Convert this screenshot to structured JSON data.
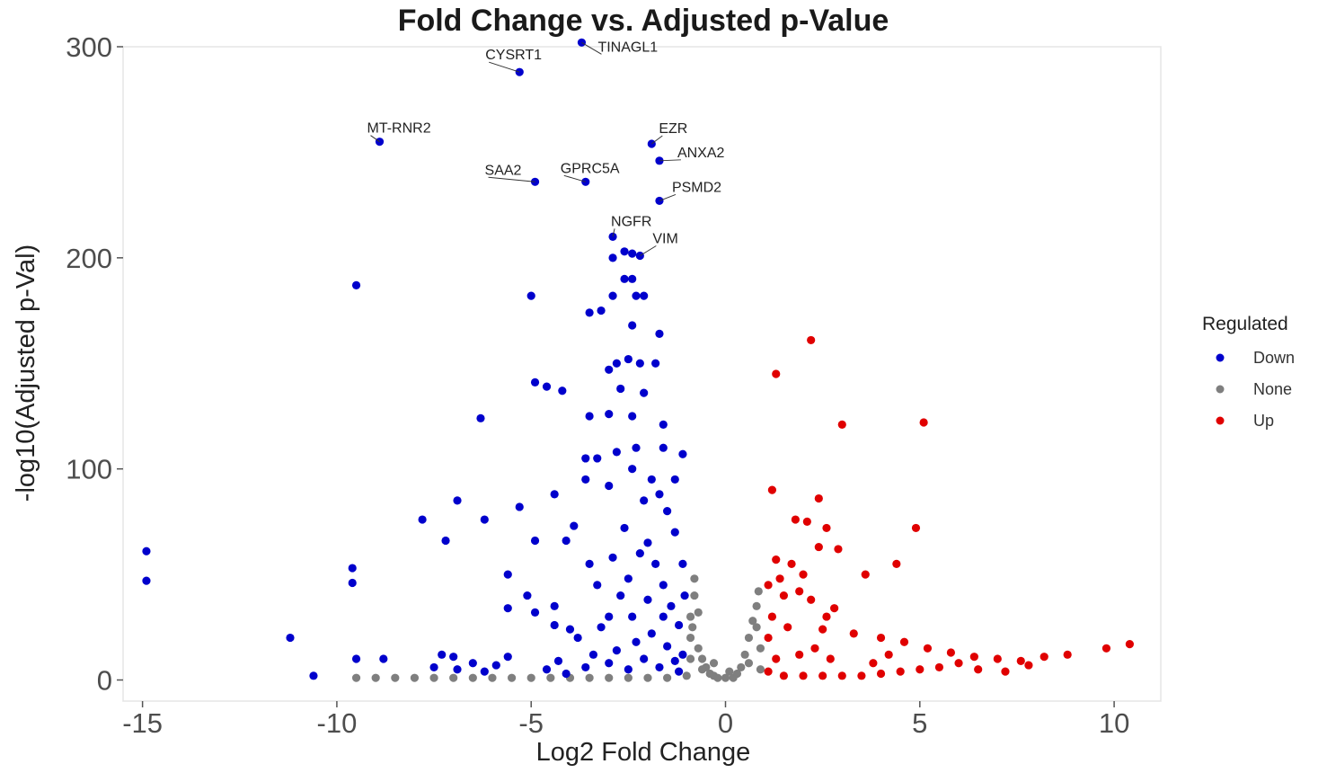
{
  "chart_data": {
    "type": "scatter",
    "title": "Fold Change vs. Adjusted p-Value",
    "xlabel": "Log2 Fold Change",
    "ylabel": "-log10(Adjusted p-Val)",
    "xlim": [
      -15.5,
      11.2
    ],
    "ylim": [
      -10,
      300
    ],
    "x_ticks": [
      -15,
      -10,
      -5,
      0,
      5,
      10
    ],
    "x_tick_labels": [
      "-15",
      "-10",
      "-5",
      "0",
      "5",
      "10"
    ],
    "y_ticks": [
      0,
      100,
      200,
      300
    ],
    "y_tick_labels": [
      "0",
      "100",
      "200",
      "300"
    ],
    "grid": false,
    "legend": {
      "title": "Regulated",
      "position": "right",
      "entries": [
        {
          "label": "Down",
          "color": "#0000cc"
        },
        {
          "label": "None",
          "color": "#7f7f7f"
        },
        {
          "label": "Up",
          "color": "#e00000"
        }
      ]
    },
    "labels": [
      {
        "text": "CYSRT1",
        "x": -5.3,
        "y": 288
      },
      {
        "text": "TINAGL1",
        "x": -3.7,
        "y": 302
      },
      {
        "text": "MT-RNR2",
        "x": -8.9,
        "y": 255
      },
      {
        "text": "EZR",
        "x": -1.9,
        "y": 254
      },
      {
        "text": "ANXA2",
        "x": -1.7,
        "y": 246
      },
      {
        "text": "SAA2",
        "x": -4.9,
        "y": 236
      },
      {
        "text": "GPRC5A",
        "x": -3.6,
        "y": 236
      },
      {
        "text": "PSMD2",
        "x": -1.7,
        "y": 227
      },
      {
        "text": "NGFR",
        "x": -2.9,
        "y": 210
      },
      {
        "text": "VIM",
        "x": -2.2,
        "y": 201
      }
    ],
    "series": [
      {
        "name": "Down",
        "color": "#0000cc",
        "points": [
          [
            -5.3,
            288
          ],
          [
            -3.7,
            302
          ],
          [
            -8.9,
            255
          ],
          [
            -1.9,
            254
          ],
          [
            -1.7,
            246
          ],
          [
            -4.9,
            236
          ],
          [
            -3.6,
            236
          ],
          [
            -1.7,
            227
          ],
          [
            -2.9,
            210
          ],
          [
            -2.2,
            201
          ],
          [
            -2.6,
            203
          ],
          [
            -2.4,
            202
          ],
          [
            -9.5,
            187
          ],
          [
            -5.0,
            182
          ],
          [
            -2.9,
            200
          ],
          [
            -2.6,
            190
          ],
          [
            -2.4,
            190
          ],
          [
            -2.9,
            182
          ],
          [
            -2.3,
            182
          ],
          [
            -2.1,
            182
          ],
          [
            -3.5,
            174
          ],
          [
            -3.2,
            175
          ],
          [
            -2.4,
            168
          ],
          [
            -1.7,
            164
          ],
          [
            -4.9,
            141
          ],
          [
            -4.6,
            139
          ],
          [
            -4.2,
            137
          ],
          [
            -3.0,
            147
          ],
          [
            -2.8,
            150
          ],
          [
            -2.5,
            152
          ],
          [
            -2.2,
            150
          ],
          [
            -1.8,
            150
          ],
          [
            -2.7,
            138
          ],
          [
            -2.1,
            136
          ],
          [
            -3.0,
            126
          ],
          [
            -3.5,
            125
          ],
          [
            -2.4,
            125
          ],
          [
            -1.6,
            121
          ],
          [
            -6.3,
            124
          ],
          [
            -2.8,
            108
          ],
          [
            -2.3,
            110
          ],
          [
            -1.6,
            110
          ],
          [
            -1.1,
            107
          ],
          [
            -3.6,
            105
          ],
          [
            -3.3,
            105
          ],
          [
            -2.4,
            100
          ],
          [
            -3.6,
            95
          ],
          [
            -3.0,
            92
          ],
          [
            -1.3,
            95
          ],
          [
            -4.4,
            88
          ],
          [
            -6.9,
            85
          ],
          [
            -5.3,
            82
          ],
          [
            -7.8,
            76
          ],
          [
            -6.2,
            76
          ],
          [
            -3.9,
            73
          ],
          [
            -7.2,
            66
          ],
          [
            -4.9,
            66
          ],
          [
            -4.1,
            66
          ],
          [
            -5.6,
            50
          ],
          [
            -9.6,
            53
          ],
          [
            -9.6,
            46
          ],
          [
            -5.6,
            34
          ],
          [
            -5.1,
            40
          ],
          [
            -4.9,
            32
          ],
          [
            -4.4,
            35
          ],
          [
            -4.4,
            26
          ],
          [
            -4.0,
            24
          ],
          [
            -3.8,
            20
          ],
          [
            -11.2,
            20
          ],
          [
            -9.5,
            10
          ],
          [
            -8.8,
            10
          ],
          [
            -10.6,
            2
          ],
          [
            -7.3,
            12
          ],
          [
            -7.0,
            11
          ],
          [
            -7.5,
            6
          ],
          [
            -6.9,
            5
          ],
          [
            -6.5,
            8
          ],
          [
            -6.2,
            4
          ],
          [
            -5.9,
            7
          ],
          [
            -5.6,
            11
          ],
          [
            -4.6,
            5
          ],
          [
            -4.3,
            9
          ],
          [
            -4.1,
            3
          ],
          [
            -3.6,
            6
          ],
          [
            -3.4,
            12
          ],
          [
            -3.0,
            8
          ],
          [
            -2.8,
            14
          ],
          [
            -2.5,
            5
          ],
          [
            -2.3,
            18
          ],
          [
            -2.1,
            10
          ],
          [
            -1.9,
            22
          ],
          [
            -1.7,
            6
          ],
          [
            -1.5,
            16
          ],
          [
            -1.3,
            9
          ],
          [
            -1.1,
            12
          ],
          [
            -1.2,
            26
          ],
          [
            -1.4,
            35
          ],
          [
            -1.6,
            45
          ],
          [
            -1.8,
            55
          ],
          [
            -2.0,
            65
          ],
          [
            -2.2,
            60
          ],
          [
            -2.5,
            48
          ],
          [
            -2.7,
            40
          ],
          [
            -3.0,
            30
          ],
          [
            -3.2,
            25
          ],
          [
            -1.05,
            40
          ],
          [
            -1.1,
            55
          ],
          [
            -1.3,
            70
          ],
          [
            -1.5,
            80
          ],
          [
            -1.7,
            88
          ],
          [
            -1.9,
            95
          ],
          [
            -2.1,
            85
          ],
          [
            -2.6,
            72
          ],
          [
            -2.9,
            58
          ],
          [
            -3.3,
            45
          ],
          [
            -3.5,
            55
          ],
          [
            -1.2,
            4
          ],
          [
            -1.6,
            30
          ],
          [
            -2.0,
            38
          ],
          [
            -2.4,
            30
          ],
          [
            -14.9,
            61
          ],
          [
            -14.9,
            47
          ]
        ]
      },
      {
        "name": "None",
        "color": "#7f7f7f",
        "points": [
          [
            -9.5,
            1
          ],
          [
            -9.0,
            1
          ],
          [
            -8.5,
            1
          ],
          [
            -8.0,
            1
          ],
          [
            -7.5,
            1
          ],
          [
            -7.0,
            1
          ],
          [
            -6.5,
            1
          ],
          [
            -6.0,
            1
          ],
          [
            -5.5,
            1
          ],
          [
            -5.0,
            1
          ],
          [
            -4.5,
            1
          ],
          [
            -4.0,
            1
          ],
          [
            -3.5,
            1
          ],
          [
            -3.0,
            1
          ],
          [
            -2.5,
            1
          ],
          [
            -2.0,
            1
          ],
          [
            -1.5,
            1
          ],
          [
            -1.0,
            2
          ],
          [
            -0.9,
            10
          ],
          [
            -0.9,
            20
          ],
          [
            -0.9,
            30
          ],
          [
            -0.8,
            40
          ],
          [
            -0.8,
            48
          ],
          [
            -0.7,
            15
          ],
          [
            -0.6,
            10
          ],
          [
            -0.5,
            6
          ],
          [
            -0.4,
            3
          ],
          [
            -0.3,
            2
          ],
          [
            -0.2,
            1
          ],
          [
            0.0,
            1
          ],
          [
            0.2,
            1
          ],
          [
            0.3,
            3
          ],
          [
            0.4,
            6
          ],
          [
            0.5,
            12
          ],
          [
            0.6,
            20
          ],
          [
            0.7,
            28
          ],
          [
            0.8,
            35
          ],
          [
            0.85,
            42
          ],
          [
            0.8,
            25
          ],
          [
            0.6,
            8
          ],
          [
            0.9,
            5
          ],
          [
            0.9,
            15
          ],
          [
            -0.85,
            25
          ],
          [
            -0.7,
            32
          ],
          [
            -0.6,
            5
          ],
          [
            -0.3,
            8
          ],
          [
            0.1,
            4
          ]
        ]
      },
      {
        "name": "Up",
        "color": "#e00000",
        "points": [
          [
            2.2,
            161
          ],
          [
            1.3,
            145
          ],
          [
            3.0,
            121
          ],
          [
            5.1,
            122
          ],
          [
            1.2,
            90
          ],
          [
            2.4,
            86
          ],
          [
            1.8,
            76
          ],
          [
            2.1,
            75
          ],
          [
            2.6,
            72
          ],
          [
            4.9,
            72
          ],
          [
            2.4,
            63
          ],
          [
            2.9,
            62
          ],
          [
            1.3,
            57
          ],
          [
            1.7,
            55
          ],
          [
            4.4,
            55
          ],
          [
            2.0,
            50
          ],
          [
            3.6,
            50
          ],
          [
            1.1,
            45
          ],
          [
            1.5,
            40
          ],
          [
            2.2,
            38
          ],
          [
            2.8,
            34
          ],
          [
            1.2,
            30
          ],
          [
            1.6,
            25
          ],
          [
            2.5,
            24
          ],
          [
            3.3,
            22
          ],
          [
            4.0,
            20
          ],
          [
            4.6,
            18
          ],
          [
            5.2,
            15
          ],
          [
            5.8,
            13
          ],
          [
            6.4,
            11
          ],
          [
            7.0,
            10
          ],
          [
            7.6,
            9
          ],
          [
            8.2,
            11
          ],
          [
            8.8,
            12
          ],
          [
            9.8,
            15
          ],
          [
            10.4,
            17
          ],
          [
            6.0,
            8
          ],
          [
            5.5,
            6
          ],
          [
            5.0,
            5
          ],
          [
            4.5,
            4
          ],
          [
            4.0,
            3
          ],
          [
            3.5,
            2
          ],
          [
            3.0,
            2
          ],
          [
            2.5,
            2
          ],
          [
            2.0,
            2
          ],
          [
            1.5,
            2
          ],
          [
            1.1,
            4
          ],
          [
            1.3,
            10
          ],
          [
            1.9,
            12
          ],
          [
            2.3,
            15
          ],
          [
            2.7,
            10
          ],
          [
            3.8,
            8
          ],
          [
            4.2,
            12
          ],
          [
            6.5,
            5
          ],
          [
            7.2,
            4
          ],
          [
            7.8,
            7
          ],
          [
            1.1,
            20
          ],
          [
            1.4,
            48
          ],
          [
            1.9,
            42
          ],
          [
            2.6,
            30
          ]
        ]
      }
    ]
  }
}
